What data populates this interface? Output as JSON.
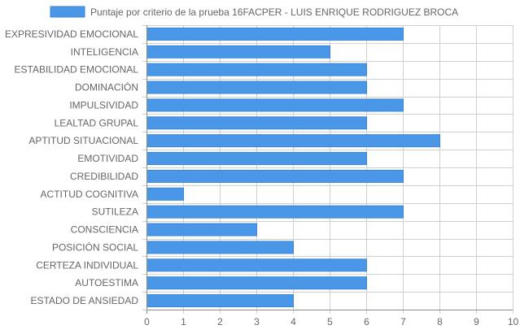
{
  "colors": {
    "bar_fill": "#4a97e8",
    "bar_stroke": "#3a86d8",
    "grid": "#d0d0d0",
    "axis": "#8c8c8c",
    "text": "#666666"
  },
  "chart_data": {
    "type": "bar",
    "orientation": "horizontal",
    "categories": [
      "EXPRESIVIDAD EMOCIONAL",
      "INTELIGENCIA",
      "ESTABILIDAD EMOCIONAL",
      "DOMINACIÓN",
      "IMPULSIVIDAD",
      "LEALTAD GRUPAL",
      "APTITUD SITUACIONAL",
      "EMOTIVIDAD",
      "CREDIBILIDAD",
      "ACTITUD COGNITIVA",
      "SUTILEZA",
      "CONSCIENCIA",
      "POSICIÓN SOCIAL",
      "CERTEZA INDIVIDUAL",
      "AUTOESTIMA",
      "ESTADO DE ANSIEDAD"
    ],
    "series": [
      {
        "name": "Puntaje por criterio de la prueba 16FACPER - LUIS ENRIQUE RODRIGUEZ BROCA",
        "values": [
          7,
          5,
          6,
          6,
          7,
          6,
          8,
          6,
          7,
          1,
          7,
          3,
          4,
          6,
          6,
          4
        ]
      }
    ],
    "xlim": [
      0,
      10
    ],
    "xticks": [
      "0",
      "1",
      "2",
      "3",
      "4",
      "5",
      "6",
      "7",
      "8",
      "9",
      "10"
    ],
    "grid": true,
    "legend_position": "top"
  }
}
